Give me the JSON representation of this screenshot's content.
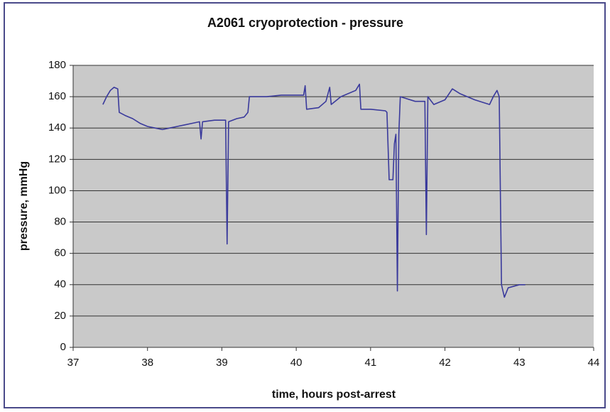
{
  "chart_data": {
    "type": "line",
    "title": "A2061 cryoprotection - pressure",
    "xlabel": "time, hours post-arrest",
    "ylabel": "pressure, mmHg",
    "x": [
      37.4,
      37.45,
      37.5,
      37.55,
      37.6,
      37.62,
      37.7,
      37.8,
      37.9,
      38.0,
      38.1,
      38.2,
      38.3,
      38.4,
      38.5,
      38.6,
      38.7,
      38.72,
      38.74,
      38.9,
      39.05,
      39.07,
      39.09,
      39.2,
      39.3,
      39.35,
      39.37,
      39.6,
      39.8,
      40.1,
      40.12,
      40.14,
      40.3,
      40.4,
      40.45,
      40.47,
      40.6,
      40.8,
      40.85,
      40.87,
      41.0,
      41.2,
      41.22,
      41.25,
      41.3,
      41.32,
      41.34,
      41.36,
      41.38,
      41.4,
      41.6,
      41.73,
      41.75,
      41.77,
      41.85,
      42.0,
      42.1,
      42.2,
      42.4,
      42.6,
      42.65,
      42.7,
      42.73,
      42.76,
      42.8,
      42.85,
      43.0,
      43.08
    ],
    "series": [
      {
        "name": "pressure",
        "color": "#3a3a9c",
        "values": [
          155,
          160,
          164,
          166,
          165,
          150,
          148,
          146,
          143,
          141,
          140,
          139,
          140,
          141,
          142,
          143,
          144,
          133,
          144,
          145,
          145,
          66,
          144,
          146,
          147,
          150,
          160,
          160,
          161,
          161,
          167,
          152,
          153,
          157,
          166,
          155,
          160,
          164,
          168,
          152,
          152,
          151,
          150,
          107,
          107,
          130,
          136,
          36,
          136,
          160,
          157,
          157,
          72,
          160,
          155,
          158,
          165,
          162,
          158,
          155,
          160,
          164,
          160,
          40,
          32,
          38,
          40,
          40
        ]
      }
    ],
    "xlim": [
      37,
      44
    ],
    "xticks": [
      37,
      38,
      39,
      40,
      41,
      42,
      43,
      44
    ],
    "ylim": [
      0,
      180
    ],
    "yticks": [
      0,
      20,
      40,
      60,
      80,
      100,
      120,
      140,
      160,
      180
    ],
    "grid": true
  }
}
